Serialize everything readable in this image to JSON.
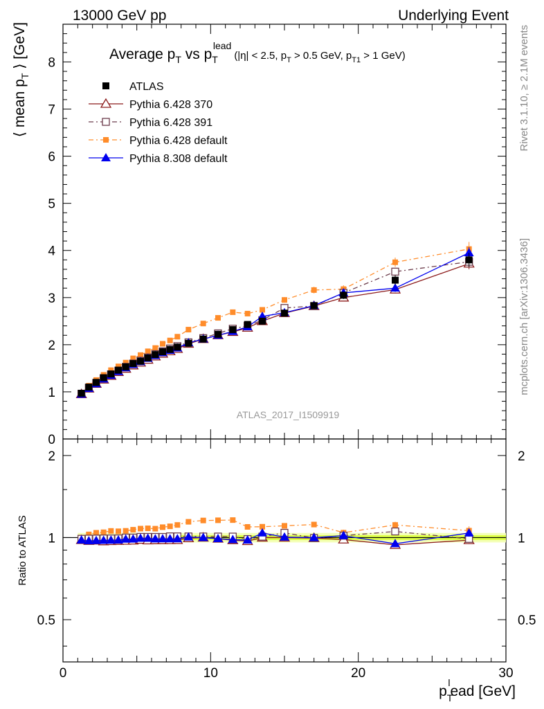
{
  "header": {
    "left": "13000 GeV pp",
    "right": "Underlying Event"
  },
  "side_labels": {
    "rivet": "Rivet 3.1.10, ≥ 2.1M events",
    "mcplots": "mcplots.cern.ch [arXiv:1306.3436]"
  },
  "colors": {
    "atlas": "#000000",
    "p370": "#8b1a1a",
    "p391": "#6b3a4a",
    "p6def": "#ff8c2a",
    "p8def": "#0000ee",
    "band_inner": "#ddff44",
    "band_outer": "#f4ffb8"
  },
  "chart_data": [
    {
      "type": "scatter",
      "title_parts": {
        "main": "Average p",
        "sub1": "T",
        "vs": " vs p",
        "sub2": "T",
        "sup2": "lead",
        "cuts": "(|η| < 2.5, p",
        "cuts_sub1": "T",
        "cuts_mid": " > 0.5 GeV, p",
        "cuts_sub2": "T1",
        "cuts_end": " > 1 GeV)"
      },
      "ylabel": "⟨ mean p",
      "ylabel_sub": "T",
      "ylabel_end": " ⟩ [GeV]",
      "watermark": "ATLAS_2017_I1509919",
      "xlim": [
        0,
        30
      ],
      "ylim": [
        0,
        8.8
      ],
      "yticks": [
        0,
        1,
        2,
        3,
        4,
        5,
        6,
        7,
        8
      ],
      "x": [
        1.25,
        1.75,
        2.25,
        2.75,
        3.25,
        3.75,
        4.25,
        4.75,
        5.25,
        5.75,
        6.25,
        6.75,
        7.25,
        7.75,
        8.5,
        9.5,
        10.5,
        11.5,
        12.5,
        13.5,
        15,
        17,
        19,
        22.5,
        27.5
      ],
      "series": [
        {
          "name": "ATLAS",
          "key": "atlas",
          "marker": "square-filled",
          "line": "none",
          "values": [
            0.97,
            1.1,
            1.2,
            1.3,
            1.38,
            1.46,
            1.53,
            1.6,
            1.65,
            1.72,
            1.79,
            1.85,
            1.9,
            1.95,
            2.03,
            2.12,
            2.22,
            2.32,
            2.43,
            2.5,
            2.67,
            2.83,
            3.05,
            3.37,
            3.8
          ],
          "errors": [
            0.02,
            0.02,
            0.02,
            0.02,
            0.02,
            0.02,
            0.02,
            0.02,
            0.02,
            0.02,
            0.02,
            0.02,
            0.02,
            0.02,
            0.02,
            0.03,
            0.03,
            0.03,
            0.04,
            0.05,
            0.06,
            0.07,
            0.08,
            0.1,
            0.15
          ]
        },
        {
          "name": "Pythia 6.428 370",
          "key": "p370",
          "marker": "triangle-open",
          "line": "solid",
          "values": [
            0.95,
            1.07,
            1.17,
            1.26,
            1.34,
            1.42,
            1.49,
            1.56,
            1.62,
            1.68,
            1.75,
            1.81,
            1.86,
            1.91,
            2.02,
            2.12,
            2.2,
            2.27,
            2.36,
            2.5,
            2.67,
            2.82,
            3.0,
            3.17,
            3.72
          ],
          "errors": [
            0.01,
            0.01,
            0.01,
            0.01,
            0.01,
            0.01,
            0.01,
            0.01,
            0.01,
            0.01,
            0.01,
            0.01,
            0.01,
            0.01,
            0.02,
            0.02,
            0.02,
            0.03,
            0.03,
            0.04,
            0.05,
            0.06,
            0.07,
            0.08,
            0.12
          ]
        },
        {
          "name": "Pythia 6.428 391",
          "key": "p391",
          "marker": "square-open",
          "line": "dashdot",
          "values": [
            0.96,
            1.09,
            1.19,
            1.29,
            1.37,
            1.45,
            1.53,
            1.6,
            1.66,
            1.73,
            1.8,
            1.86,
            1.92,
            1.97,
            2.05,
            2.14,
            2.24,
            2.34,
            2.4,
            2.52,
            2.78,
            2.82,
            3.1,
            3.55,
            3.76
          ],
          "errors": [
            0.01,
            0.01,
            0.01,
            0.01,
            0.01,
            0.01,
            0.01,
            0.01,
            0.01,
            0.01,
            0.01,
            0.01,
            0.01,
            0.01,
            0.02,
            0.02,
            0.02,
            0.03,
            0.03,
            0.04,
            0.05,
            0.06,
            0.07,
            0.08,
            0.12
          ]
        },
        {
          "name": "Pythia 6.428 default",
          "key": "p6def",
          "marker": "square-filled-small",
          "line": "dashdot",
          "values": [
            0.97,
            1.13,
            1.25,
            1.36,
            1.46,
            1.54,
            1.62,
            1.71,
            1.78,
            1.86,
            1.93,
            2.02,
            2.09,
            2.17,
            2.32,
            2.45,
            2.57,
            2.69,
            2.66,
            2.74,
            2.95,
            3.16,
            3.18,
            3.75,
            4.03
          ],
          "errors": [
            0.01,
            0.01,
            0.01,
            0.01,
            0.01,
            0.01,
            0.01,
            0.01,
            0.01,
            0.01,
            0.01,
            0.01,
            0.01,
            0.01,
            0.02,
            0.02,
            0.03,
            0.03,
            0.04,
            0.05,
            0.06,
            0.07,
            0.08,
            0.1,
            0.15
          ]
        },
        {
          "name": "Pythia 8.308 default",
          "key": "p8def",
          "marker": "triangle-filled",
          "line": "solid",
          "values": [
            0.95,
            1.07,
            1.17,
            1.27,
            1.35,
            1.43,
            1.51,
            1.58,
            1.64,
            1.71,
            1.77,
            1.83,
            1.88,
            1.93,
            2.04,
            2.12,
            2.2,
            2.28,
            2.38,
            2.6,
            2.68,
            2.83,
            3.1,
            3.2,
            3.95
          ],
          "errors": [
            0.01,
            0.01,
            0.01,
            0.01,
            0.01,
            0.01,
            0.01,
            0.01,
            0.01,
            0.01,
            0.01,
            0.01,
            0.01,
            0.01,
            0.02,
            0.02,
            0.02,
            0.03,
            0.03,
            0.04,
            0.05,
            0.06,
            0.07,
            0.08,
            0.12
          ]
        }
      ],
      "legend": "top-left"
    },
    {
      "type": "scatter",
      "ylabel": "Ratio to ATLAS",
      "xlabel": "p",
      "xlabel_sub": "T",
      "xlabel_sup": "l",
      "xlabel_end": "ead [GeV]",
      "xlim": [
        0,
        30
      ],
      "ylim": [
        0.35,
        2.3
      ],
      "xticks": [
        0,
        10,
        20,
        30
      ],
      "yticks_labeled": [
        0.5,
        1,
        2
      ],
      "band": {
        "x": [
          1.0,
          30.0
        ],
        "inner": [
          0.98,
          1.02
        ],
        "outer": [
          0.96,
          1.04
        ]
      }
    }
  ]
}
